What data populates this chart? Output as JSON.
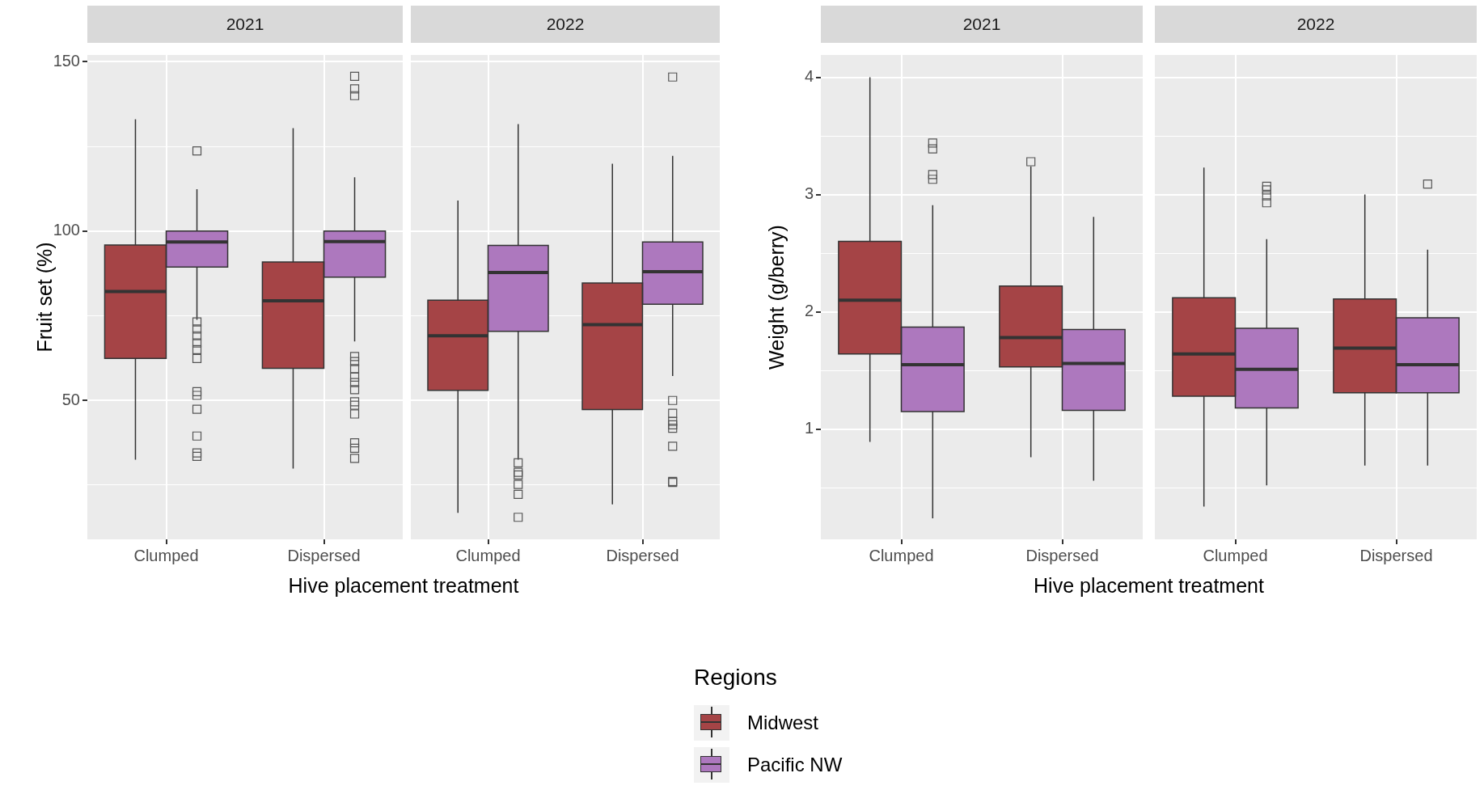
{
  "chart_data": [
    {
      "type": "box",
      "title": "2021",
      "categories": [
        "Clumped",
        "Dispersed"
      ],
      "xlabel": "Hive placement treatment",
      "ylabel": "Fruit set (%)",
      "ylim": [
        9,
        152
      ],
      "yticks": [
        {
          "value": 25,
          "label": null
        },
        50,
        {
          "value": 75,
          "label": null
        },
        100,
        {
          "value": 125,
          "label": null
        },
        150
      ],
      "grid": true,
      "legend": "bottom",
      "legend_title": "Regions",
      "series": [
        {
          "name": "Midwest",
          "color": "#a54446",
          "boxes": [
            {
              "low": 32.5,
              "q1": 62.4,
              "median": 82.2,
              "q3": 95.9,
              "high": 133
            },
            {
              "low": 29.9,
              "q1": 59.5,
              "median": 79.4,
              "q3": 90.9,
              "high": 130.4
            }
          ]
        },
        {
          "name": "Pacific NW",
          "color": "#ad78be",
          "boxes": [
            {
              "low": 73.8,
              "q1": 89.4,
              "median": 96.8,
              "q3": 100,
              "high": 112.4,
              "outliers": [
                123.7,
                73.2,
                71.1,
                69.1,
                67,
                65,
                62.4,
                52.6,
                51.5,
                47.4,
                39.5,
                34.5,
                33.5
              ]
            },
            {
              "low": 67.4,
              "q1": 86.4,
              "median": 96.9,
              "q3": 100,
              "high": 115.9,
              "outliers": [
                145.7,
                142,
                140,
                63,
                61.5,
                59.4,
                56.9,
                55.3,
                53.2,
                49.6,
                48.6,
                46,
                37.5,
                35.9,
                32.9
              ]
            }
          ]
        }
      ]
    },
    {
      "type": "box",
      "title": "2022",
      "categories": [
        "Clumped",
        "Dispersed"
      ],
      "ylim": [
        9,
        152
      ],
      "yticks": [
        {
          "value": 25,
          "label": null
        },
        50,
        {
          "value": 75,
          "label": null
        },
        100,
        {
          "value": 125,
          "label": null
        },
        150
      ],
      "grid": true,
      "tick_labels": "x",
      "series": [
        {
          "color": "#a54446",
          "boxes": [
            {
              "low": 16.8,
              "q1": 53,
              "median": 69.1,
              "q3": 79.6,
              "high": 109
            },
            {
              "low": 19.3,
              "q1": 47.3,
              "median": 72.4,
              "q3": 84.7,
              "high": 119.9
            }
          ]
        },
        {
          "color": "#ad78be",
          "boxes": [
            {
              "low": 32.5,
              "q1": 70.4,
              "median": 87.8,
              "q3": 95.8,
              "high": 131.6,
              "outliers": [
                31.6,
                28.8,
                28,
                25.2,
                22.3,
                15.5
              ]
            },
            {
              "low": 57.2,
              "q1": 78.4,
              "median": 88,
              "q3": 96.8,
              "high": 122.2,
              "outliers": [
                145.5,
                50,
                46.2,
                43.8,
                42.8,
                41.8,
                36.5,
                26.1,
                25.8
              ]
            }
          ]
        }
      ]
    },
    {
      "type": "box",
      "title": "2021",
      "categories": [
        "Clumped",
        "Dispersed"
      ],
      "xlabel": "Hive placement treatment",
      "ylabel": "Weight (g/berry)",
      "ylim": [
        0.06,
        4.19
      ],
      "yticks": [
        {
          "value": 0.5,
          "label": null
        },
        1,
        {
          "value": 1.5,
          "label": null
        },
        2,
        {
          "value": 2.5,
          "label": null
        },
        3,
        {
          "value": 3.5,
          "label": null
        },
        4
      ],
      "grid": true,
      "series": [
        {
          "color": "#a54446",
          "boxes": [
            {
              "low": 0.89,
              "q1": 1.64,
              "median": 2.1,
              "q3": 2.6,
              "high": 4.0
            },
            {
              "low": 0.76,
              "q1": 1.53,
              "median": 1.78,
              "q3": 2.22,
              "high": 3.24,
              "outliers": [
                3.28
              ]
            }
          ]
        },
        {
          "color": "#ad78be",
          "boxes": [
            {
              "low": 0.24,
              "q1": 1.15,
              "median": 1.55,
              "q3": 1.87,
              "high": 2.91,
              "outliers": [
                3.44,
                3.39,
                3.17,
                3.13
              ]
            },
            {
              "low": 0.56,
              "q1": 1.16,
              "median": 1.56,
              "q3": 1.85,
              "high": 2.81
            }
          ]
        }
      ]
    },
    {
      "type": "box",
      "title": "2022",
      "categories": [
        "Clumped",
        "Dispersed"
      ],
      "ylim": [
        0.06,
        4.19
      ],
      "yticks": [
        {
          "value": 0.5,
          "label": null
        },
        1,
        {
          "value": 1.5,
          "label": null
        },
        2,
        {
          "value": 2.5,
          "label": null
        },
        3,
        {
          "value": 3.5,
          "label": null
        },
        4
      ],
      "grid": true,
      "tick_labels": "x",
      "series": [
        {
          "color": "#a54446",
          "boxes": [
            {
              "low": 0.34,
              "q1": 1.28,
              "median": 1.64,
              "q3": 2.12,
              "high": 3.23
            },
            {
              "low": 0.69,
              "q1": 1.31,
              "median": 1.69,
              "q3": 2.11,
              "high": 3.0
            }
          ]
        },
        {
          "color": "#ad78be",
          "boxes": [
            {
              "low": 0.52,
              "q1": 1.18,
              "median": 1.51,
              "q3": 1.86,
              "high": 2.62,
              "outliers": [
                3.07,
                3.04,
                2.99,
                2.93
              ]
            },
            {
              "low": 0.69,
              "q1": 1.31,
              "median": 1.55,
              "q3": 1.95,
              "high": 2.53,
              "outliers": [
                3.09
              ]
            }
          ]
        }
      ]
    }
  ]
}
